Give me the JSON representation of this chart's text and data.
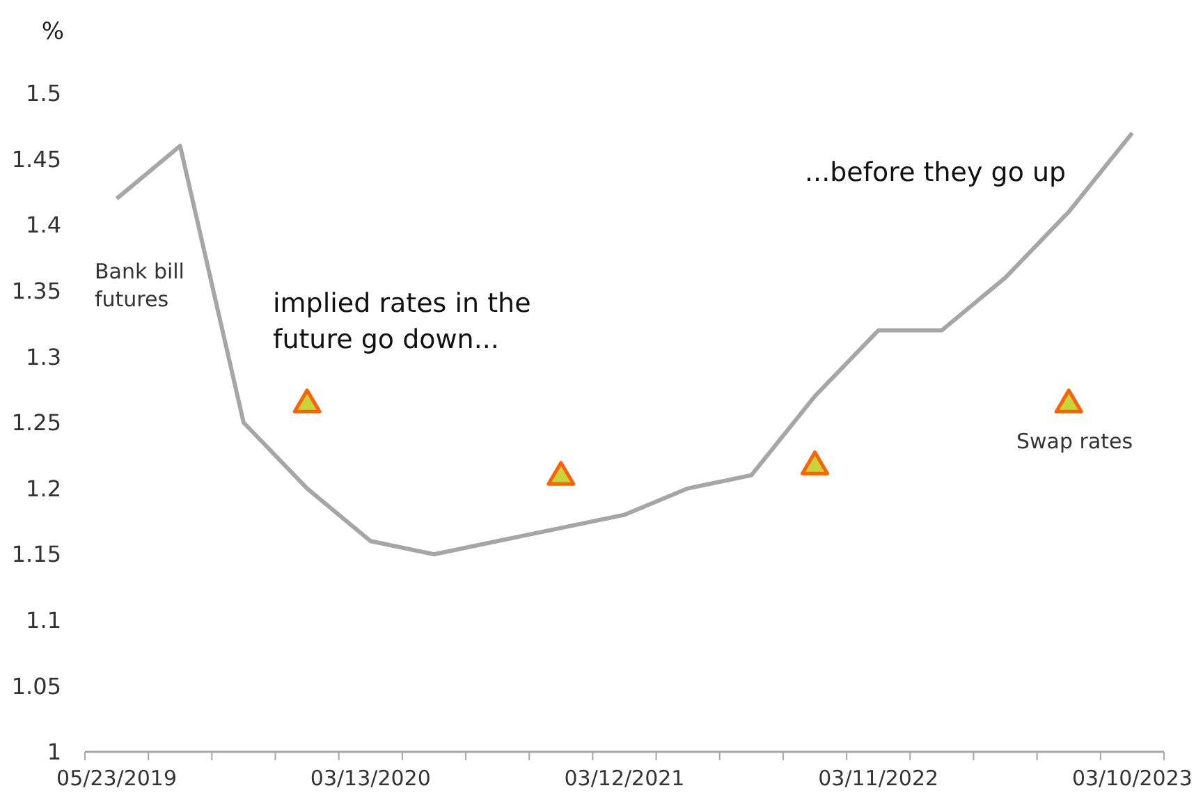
{
  "chart_data": {
    "type": "line",
    "ylabel": "%",
    "categories": [
      "05/23/2019",
      null,
      null,
      null,
      "03/13/2020",
      null,
      null,
      null,
      "03/12/2021",
      null,
      null,
      null,
      "03/11/2022",
      null,
      null,
      null,
      "03/10/2023"
    ],
    "series": [
      {
        "name": "Bank bill futures",
        "color": "#a6a6a6",
        "marker": "none",
        "values": [
          1.42,
          1.46,
          1.25,
          1.2,
          1.16,
          1.15,
          1.16,
          1.17,
          1.18,
          1.2,
          1.21,
          1.27,
          1.32,
          1.32,
          1.36,
          1.41,
          1.47
        ]
      },
      {
        "name": "Swap rates",
        "type": "scatter",
        "color": "#c8d43c",
        "marker": "triangle",
        "values": [
          null,
          null,
          null,
          1.265,
          null,
          null,
          null,
          1.21,
          null,
          null,
          null,
          1.218,
          null,
          null,
          null,
          1.265,
          null
        ]
      }
    ],
    "ylim": [
      1,
      1.5
    ],
    "yticks": [
      1,
      1.05,
      1.1,
      1.15,
      1.2,
      1.25,
      1.3,
      1.35,
      1.4,
      1.45,
      1.5
    ],
    "grid": false,
    "legend": false,
    "annotations": [
      "implied rates in the future go down...",
      "...before they go up"
    ]
  }
}
